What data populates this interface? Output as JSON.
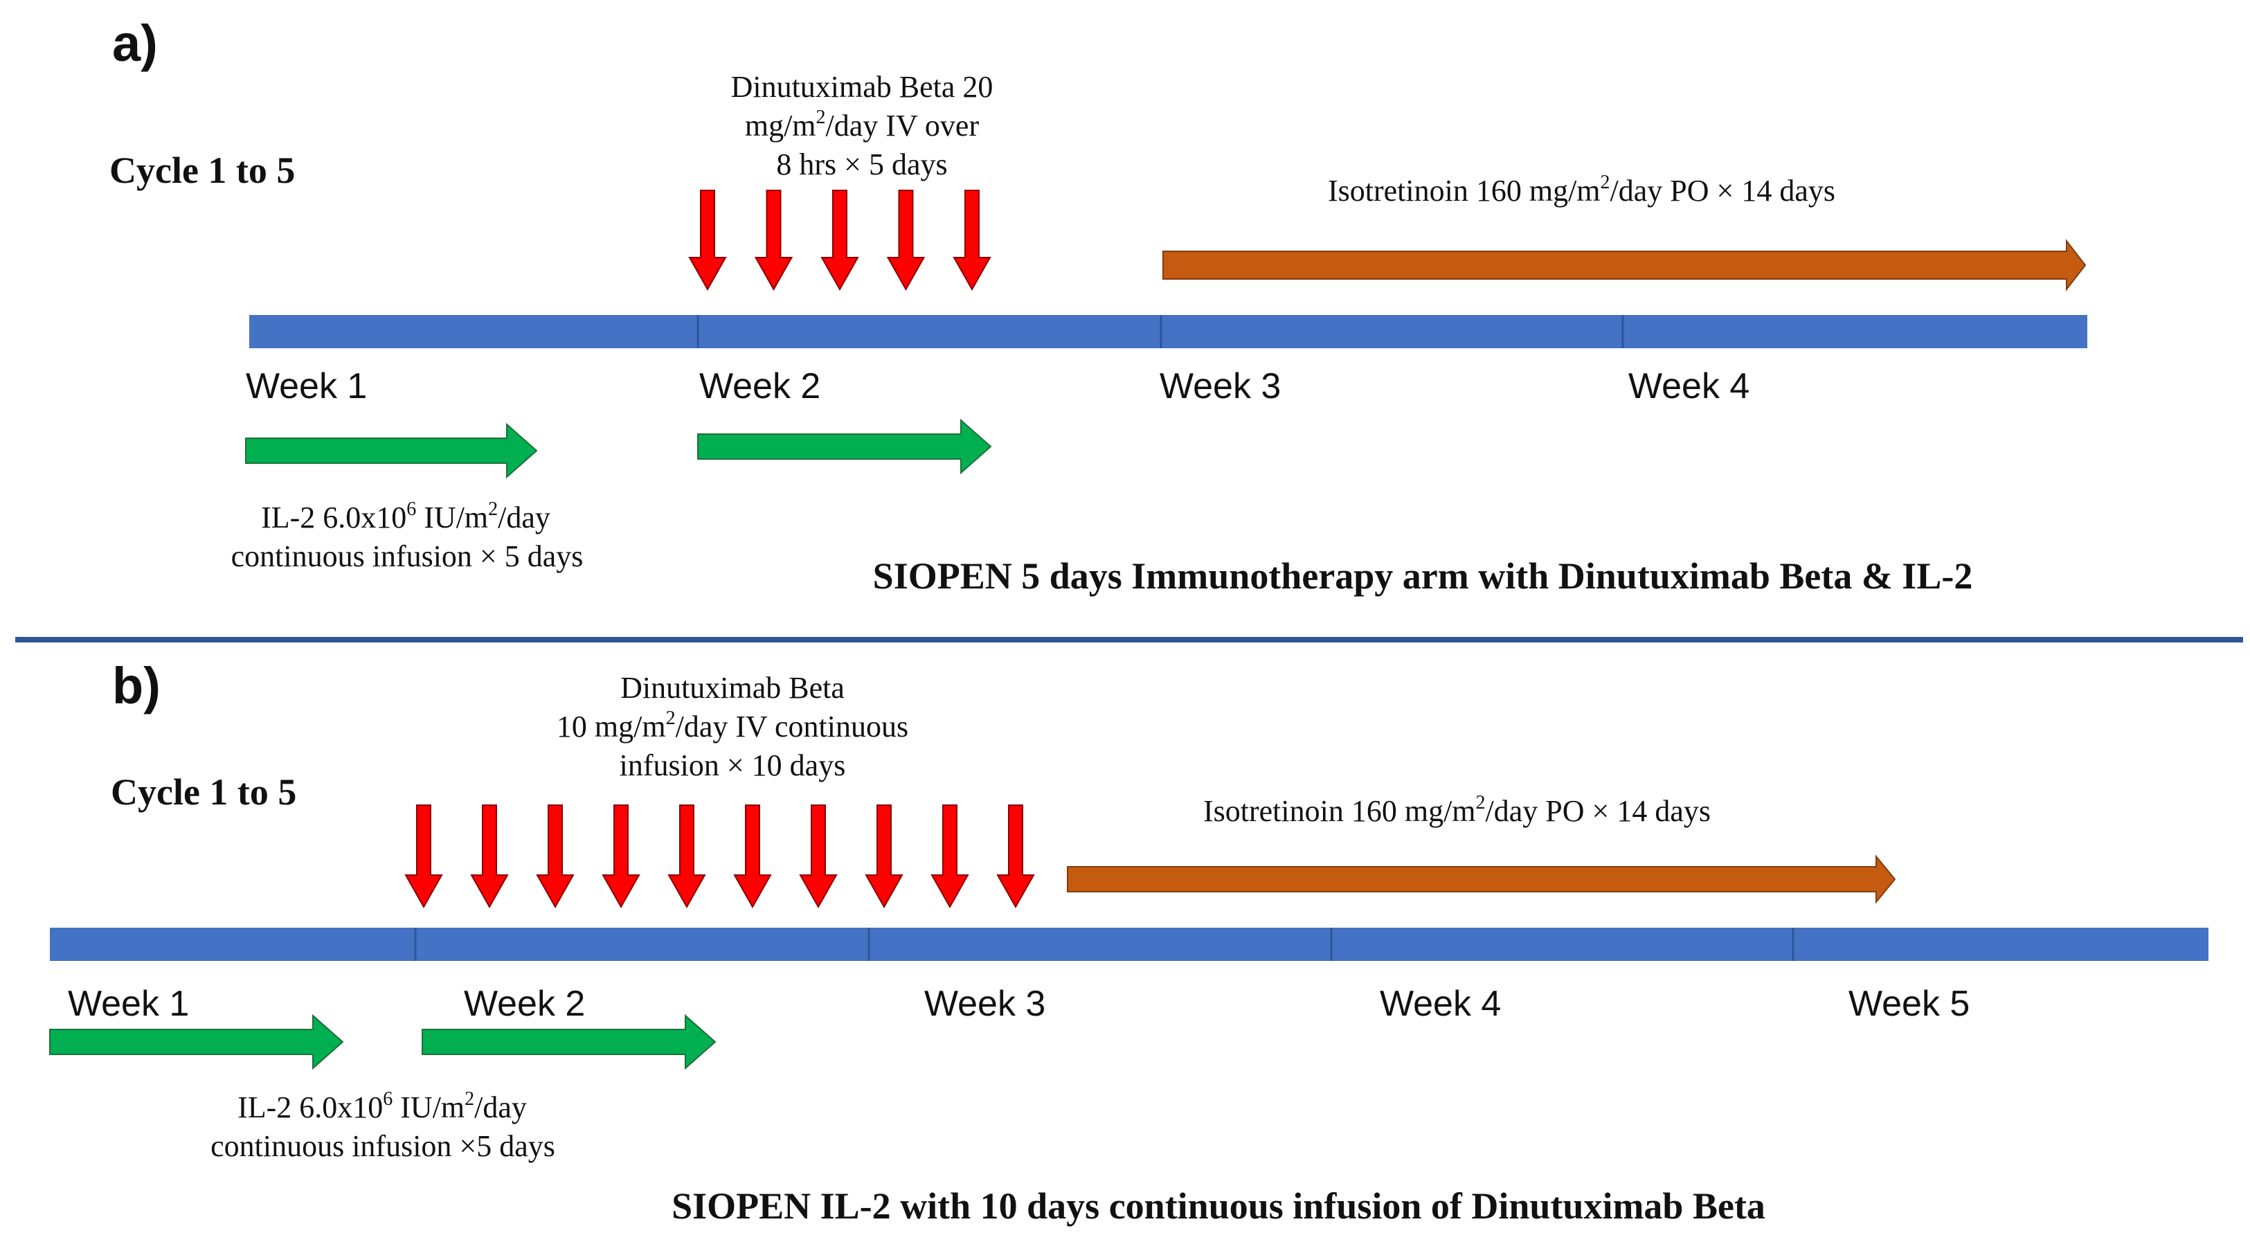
{
  "colors": {
    "timeline": "#4472C4",
    "timeline_divider": "#2F5597",
    "red_arrow": "#FF0000",
    "red_arrow_stroke": "#8B0000",
    "green_arrow": "#00B050",
    "green_arrow_stroke": "#1F6F3A",
    "orange_arrow": "#C55A11",
    "orange_arrow_stroke": "#843C0C",
    "separator": "#2F5597"
  },
  "panel_a": {
    "label": "a)",
    "cycle": "Cycle 1 to 5",
    "dinutuximab_line1": "Dinutuximab Beta 20",
    "dinutuximab_line2_pre": "mg/m",
    "dinutuximab_line2_sup": "2",
    "dinutuximab_line2_post": "/day IV over",
    "dinutuximab_line3": "8 hrs × 5 days",
    "dose_count": 5,
    "isotretinoin_pre": "Isotretinoin 160 mg/m",
    "isotretinoin_sup": "2",
    "isotretinoin_post": "/day PO × 14 days",
    "weeks": [
      "Week 1",
      "Week 2",
      "Week 3",
      "Week 4"
    ],
    "il2_line1_pre": "IL-2   6.0x10",
    "il2_line1_sup1": "6",
    "il2_line1_mid": " IU/m",
    "il2_line1_sup2": "2",
    "il2_line1_post": "/day",
    "il2_line2": "continuous infusion × 5 days",
    "title": "SIOPEN 5 days Immunotherapy arm with Dinutuximab Beta & IL-2"
  },
  "panel_b": {
    "label": "b)",
    "cycle": "Cycle 1 to 5",
    "dinutuximab_line1": "Dinutuximab Beta",
    "dinutuximab_line2_pre": "10 mg/m",
    "dinutuximab_line2_sup": "2",
    "dinutuximab_line2_post": "/day IV continuous",
    "dinutuximab_line3": "infusion  × 10 days",
    "dose_count": 10,
    "isotretinoin_pre": "Isotretinoin 160 mg/m",
    "isotretinoin_sup": "2",
    "isotretinoin_post": "/day PO × 14 days",
    "weeks": [
      "Week 1",
      "Week 2",
      "Week 3",
      "Week 4",
      "Week 5"
    ],
    "il2_line1_pre": "IL-2   6.0x10",
    "il2_line1_sup1": "6",
    "il2_line1_mid": " IU/m",
    "il2_line1_sup2": "2",
    "il2_line1_post": "/day",
    "il2_line2": "continuous infusion ×5 days",
    "title": "SIOPEN IL-2 with 10 days continuous infusion of  Dinutuximab Beta"
  }
}
